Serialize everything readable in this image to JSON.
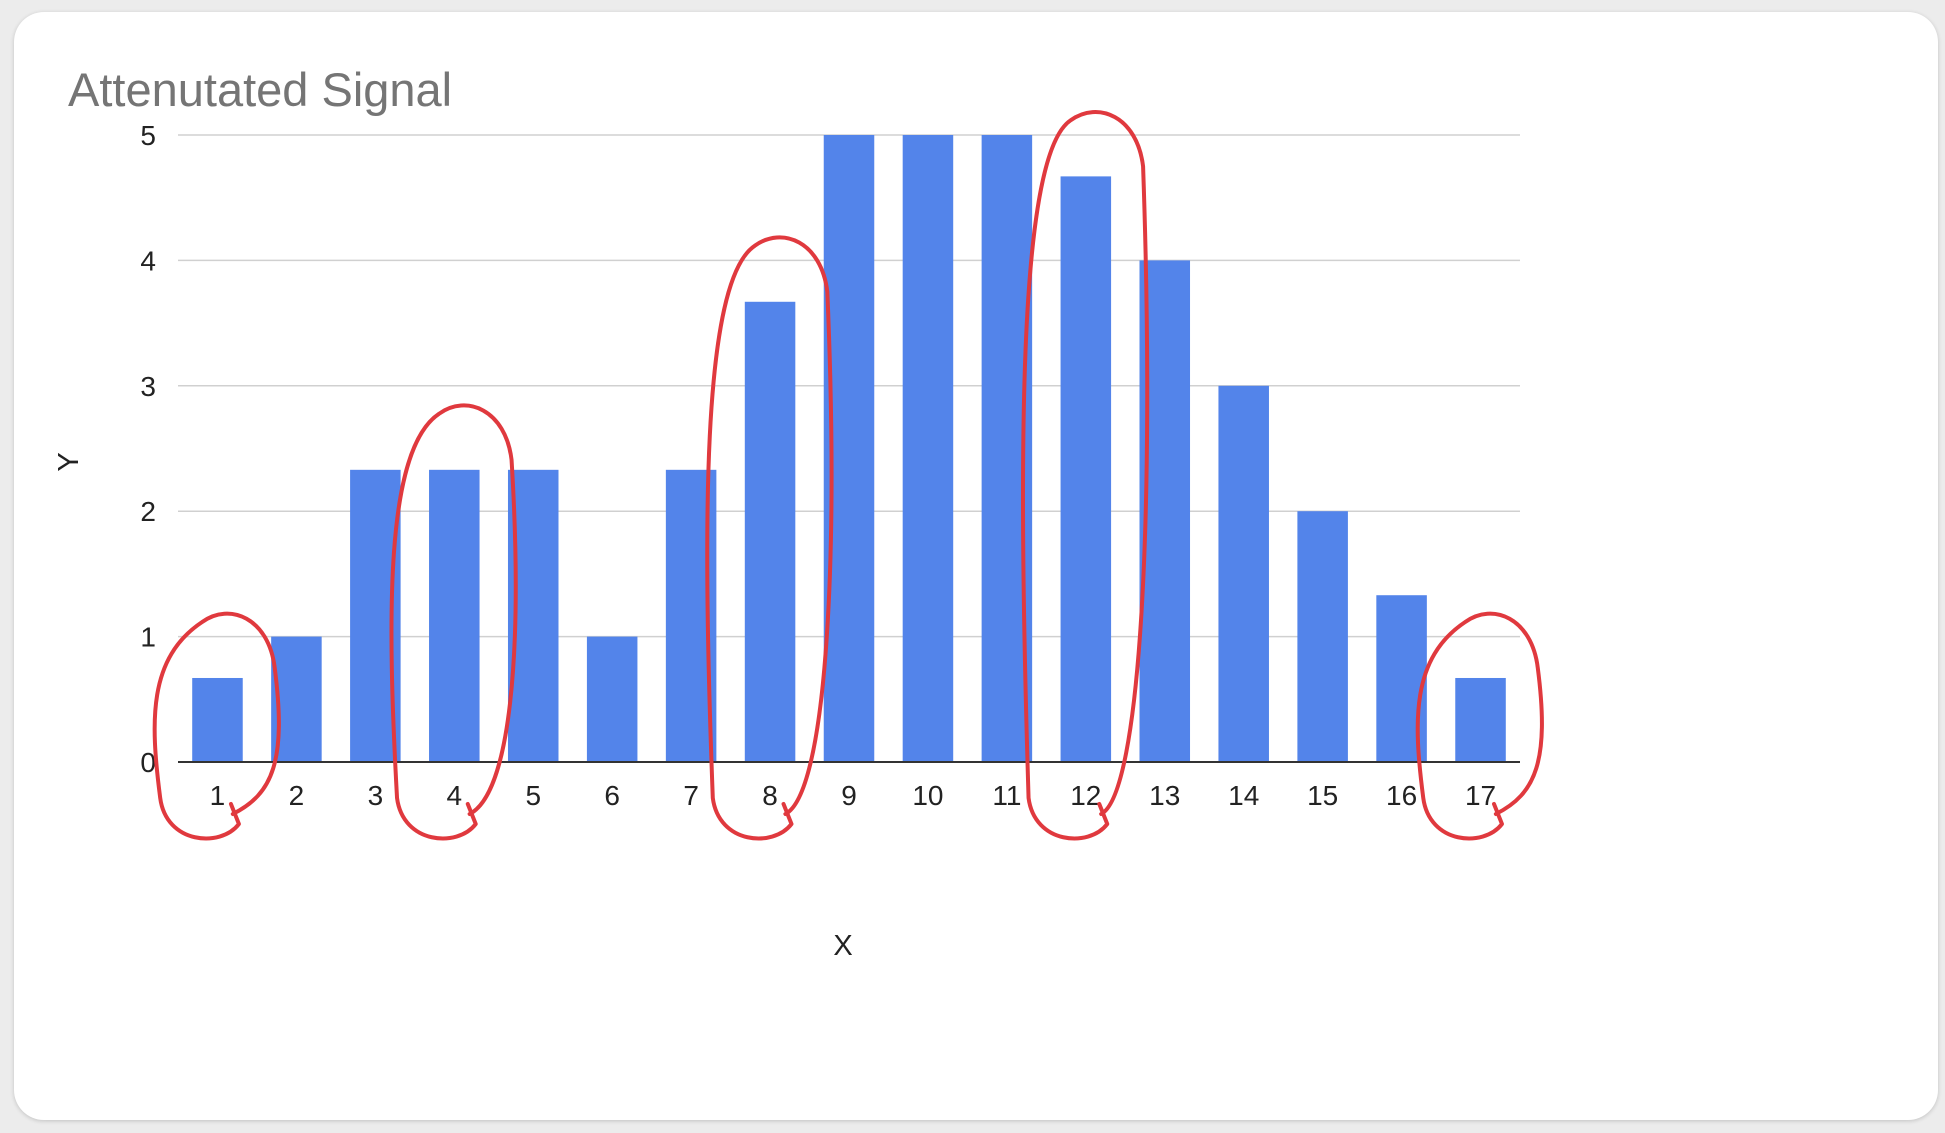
{
  "chart_data": {
    "type": "bar",
    "title": "Attenutated Signal",
    "xlabel": "X",
    "ylabel": "Y",
    "categories": [
      "1",
      "2",
      "3",
      "4",
      "5",
      "6",
      "7",
      "8",
      "9",
      "10",
      "11",
      "12",
      "13",
      "14",
      "15",
      "16",
      "17"
    ],
    "values": [
      0.67,
      1,
      2.33,
      2.33,
      2.33,
      1,
      2.33,
      3.67,
      5,
      5,
      5,
      4.67,
      4,
      3,
      2,
      1.33,
      0.67
    ],
    "ylim": [
      0,
      5
    ],
    "yticks": [
      "0",
      "1",
      "2",
      "3",
      "4",
      "5"
    ],
    "grid": true,
    "legend": "none",
    "bar_color": "#5384ea",
    "annotations": {
      "style": "hand-drawn circles",
      "color": "#e0393e",
      "circled_categories": [
        "1",
        "4",
        "8",
        "12",
        "17"
      ]
    }
  }
}
